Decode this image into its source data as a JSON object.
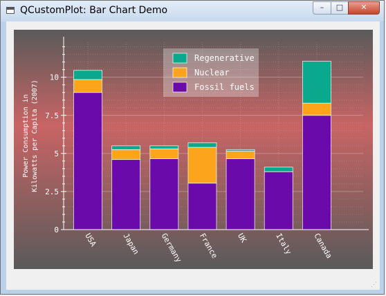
{
  "window": {
    "title": "QCustomPlot: Bar Chart Demo",
    "controls": {
      "minimize": "–",
      "maximize": "□",
      "close": "✕"
    }
  },
  "chart_data": {
    "type": "bar",
    "stacked": true,
    "categories": [
      "USA",
      "Japan",
      "Germany",
      "France",
      "UK",
      "Italy",
      "Canada"
    ],
    "series": [
      {
        "name": "Fossil fuels",
        "color": "#6a0aaa",
        "values": [
          9.0,
          4.6,
          4.65,
          3.05,
          4.65,
          3.8,
          7.5
        ]
      },
      {
        "name": "Nuclear",
        "color": "#fca51c",
        "values": [
          0.85,
          0.65,
          0.65,
          2.35,
          0.5,
          0.0,
          0.8
        ]
      },
      {
        "name": "Regenerative",
        "color": "#0aa88c",
        "values": [
          0.6,
          0.25,
          0.2,
          0.3,
          0.1,
          0.3,
          2.75
        ]
      }
    ],
    "legend_order": [
      "Regenerative",
      "Nuclear",
      "Fossil fuels"
    ],
    "legend_position": "top-center",
    "ylabel": "Power Consumption in\nKilowatts per Capita (2007)",
    "xlabel": "",
    "ylim": [
      0,
      12.3
    ],
    "yticks": [
      0,
      2.5,
      5,
      7.5,
      10
    ],
    "ytick_labels": [
      "0",
      "2.5",
      "5",
      "7.5",
      "10"
    ],
    "x_tick_rotation_deg": 60,
    "grid": true,
    "background_gradient": [
      "#5a5a5a",
      "#c86464",
      "#5a5a5a"
    ]
  }
}
